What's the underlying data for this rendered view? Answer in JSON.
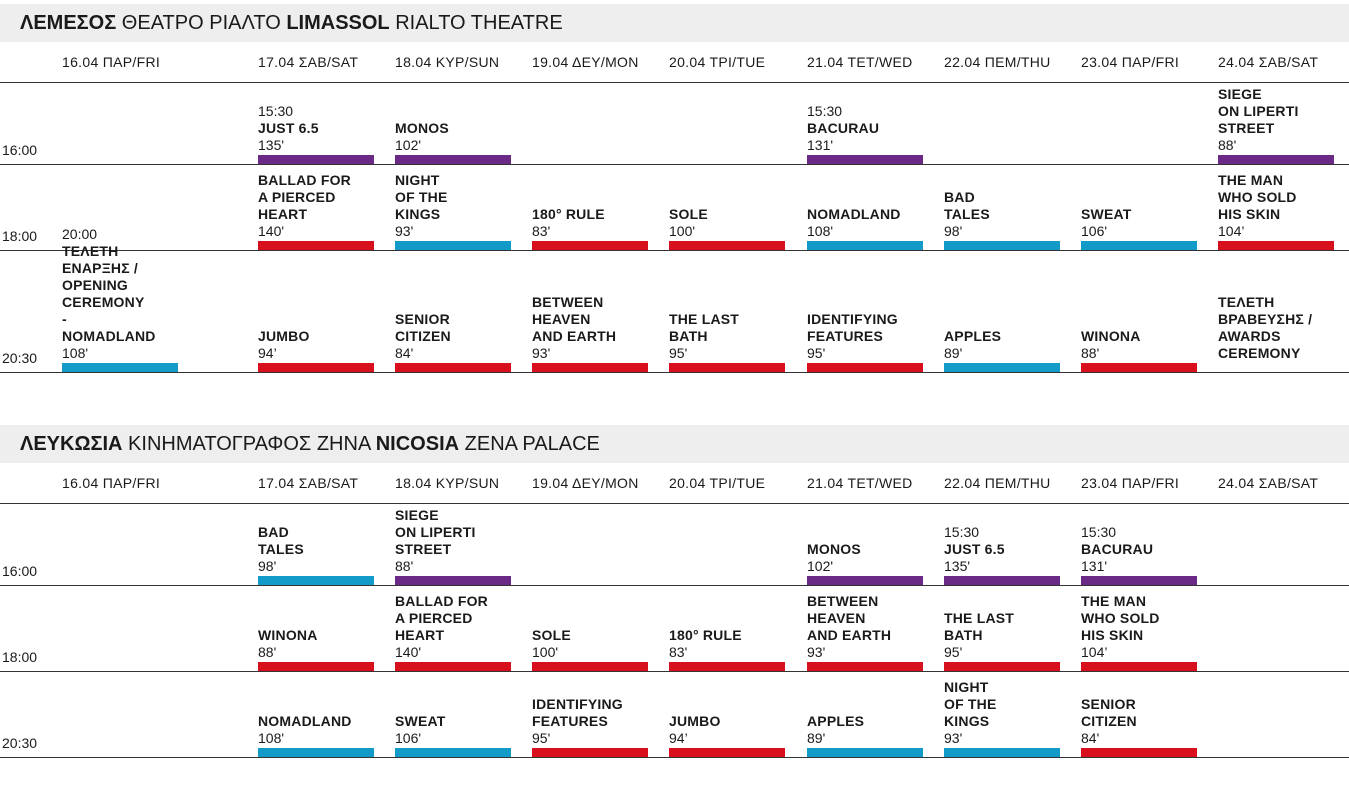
{
  "colors": {
    "red": "#d80f1c",
    "blue": "#129ac8",
    "purple": "#6a2a86"
  },
  "sections": [
    {
      "title_bold1": "ΛΕΜΕΣΟΣ",
      "title_normal1": " ΘΕΑΤΡΟ ΡΙΑΛΤΟ ",
      "title_bold2": "LIMASSOL",
      "title_normal2": " RIALTO THEATRE",
      "dates": [
        "16.04 ΠΑΡ/FRI",
        "17.04 ΣΑΒ/SAT",
        "18.04 ΚΥΡ/SUN",
        "19.04 ΔΕΥ/MON",
        "20.04 ΤΡΙ/TUE",
        "21.04 ΤΕΤ/WED",
        "22.04 ΠΕΜ/THU",
        "23.04 ΠΑΡ/FRI",
        "24.04 ΣΑΒ/SAT"
      ],
      "rows": [
        {
          "time": "16:00",
          "cells": [
            null,
            {
              "time": "15:30",
              "title": "JUST 6.5",
              "duration": "135'",
              "color": "purple"
            },
            {
              "title": "MONOS",
              "duration": "102'",
              "color": "purple"
            },
            null,
            null,
            {
              "time": "15:30",
              "title": "BACURAU",
              "duration": "131'",
              "color": "purple"
            },
            null,
            null,
            {
              "title": "SIEGE\nON LIPERTI\nSTREET",
              "duration": "88'",
              "color": "purple"
            }
          ]
        },
        {
          "time": "18:00",
          "cells": [
            null,
            {
              "title": "BALLAD FOR\nA PIERCED\nHEART",
              "duration": "140'",
              "color": "red"
            },
            {
              "title": "NIGHT\nOF THE\nKINGS",
              "duration": "93'",
              "color": "blue"
            },
            {
              "title": "180° RULE",
              "duration": "83'",
              "color": "red"
            },
            {
              "title": "SOLE",
              "duration": "100'",
              "color": "red"
            },
            {
              "title": "NOMADLAND",
              "duration": "108'",
              "color": "blue"
            },
            {
              "title": "BAD\nTALES",
              "duration": "98'",
              "color": "blue"
            },
            {
              "title": "SWEAT",
              "duration": "106'",
              "color": "blue"
            },
            {
              "title": "THE MAN\nWHO SOLD\nHIS SKIN",
              "duration": "104’",
              "color": "red"
            }
          ]
        },
        {
          "time": "20:30",
          "cells": [
            {
              "time": "20:00",
              "title": "ΤΕΛΕΤΗ ΕΝΑΡΞΗΣ /\nOPENING CEREMONY\n-\nNOMADLAND",
              "duration": "108'",
              "color": "blue"
            },
            {
              "title": "JUMBO",
              "duration": "94’",
              "color": "red"
            },
            {
              "title": "SENIOR\nCITIZEN",
              "duration": "84'",
              "color": "red"
            },
            {
              "title": "BETWEEN\nHEAVEN\nAND EARTH",
              "duration": "93'",
              "color": "red"
            },
            {
              "title": "THE LAST\nBATH",
              "duration": "95'",
              "color": "red"
            },
            {
              "title": "IDENTIFYING\nFEATURES",
              "duration": "95'",
              "color": "red"
            },
            {
              "title": "APPLES",
              "duration": "89'",
              "color": "blue"
            },
            {
              "title": "WINONA",
              "duration": "88'",
              "color": "red"
            },
            {
              "title": "ΤΕΛΕΤΗ\nΒΡΑΒΕΥΣΗΣ /\nAWARDS\nCEREMONY",
              "color": "none"
            }
          ]
        }
      ]
    },
    {
      "title_bold1": "ΛΕΥΚΩΣΙΑ",
      "title_normal1": " ΚΙΝΗΜΑΤΟΓΡΑΦΟΣ ΖΗΝΑ ",
      "title_bold2": "NICOSIA",
      "title_normal2": " ZENA PALACE",
      "dates": [
        "16.04 ΠΑΡ/FRI",
        "17.04 ΣΑΒ/SAT",
        "18.04 ΚΥΡ/SUN",
        "19.04 ΔΕΥ/MON",
        "20.04 ΤΡΙ/TUE",
        "21.04 ΤΕΤ/WED",
        "22.04 ΠΕΜ/THU",
        "23.04 ΠΑΡ/FRI",
        "24.04 ΣΑΒ/SAT"
      ],
      "rows": [
        {
          "time": "16:00",
          "cells": [
            null,
            {
              "title": "BAD\nTALES",
              "duration": "98'",
              "color": "blue"
            },
            {
              "title": "SIEGE\nON LIPERTI\nSTREET",
              "duration": "88'",
              "color": "purple"
            },
            null,
            null,
            {
              "title": "MONOS",
              "duration": "102'",
              "color": "purple"
            },
            {
              "time": "15:30",
              "title": "JUST 6.5",
              "duration": "135'",
              "color": "purple"
            },
            {
              "time": "15:30",
              "title": "BACURAU",
              "duration": "131'",
              "color": "purple"
            },
            null
          ]
        },
        {
          "time": "18:00",
          "cells": [
            null,
            {
              "title": "WINONA",
              "duration": "88'",
              "color": "red"
            },
            {
              "title": "BALLAD FOR\nA PIERCED\nHEART",
              "duration": "140'",
              "color": "red"
            },
            {
              "title": "SOLE",
              "duration": "100'",
              "color": "red"
            },
            {
              "title": "180° RULE",
              "duration": "83'",
              "color": "red"
            },
            {
              "title": "BETWEEN\nHEAVEN\nAND EARTH",
              "duration": "93'",
              "color": "red"
            },
            {
              "title": "THE LAST\nBATH",
              "duration": "95'",
              "color": "red"
            },
            {
              "title": "THE MAN\nWHO SOLD\nHIS SKIN",
              "duration": "104’",
              "color": "red"
            },
            null
          ]
        },
        {
          "time": "20:30",
          "cells": [
            null,
            {
              "title": "NOMADLAND",
              "duration": "108'",
              "color": "blue"
            },
            {
              "title": "SWEAT",
              "duration": "106'",
              "color": "blue"
            },
            {
              "title": "IDENTIFYING\nFEATURES",
              "duration": "95'",
              "color": "red"
            },
            {
              "title": "JUMBO",
              "duration": "94’",
              "color": "red"
            },
            {
              "title": "APPLES",
              "duration": "89'",
              "color": "blue"
            },
            {
              "title": "NIGHT\nOF THE\nKINGS",
              "duration": "93'",
              "color": "blue"
            },
            {
              "title": "SENIOR\nCITIZEN",
              "duration": "84'",
              "color": "red"
            },
            null
          ]
        }
      ]
    }
  ]
}
